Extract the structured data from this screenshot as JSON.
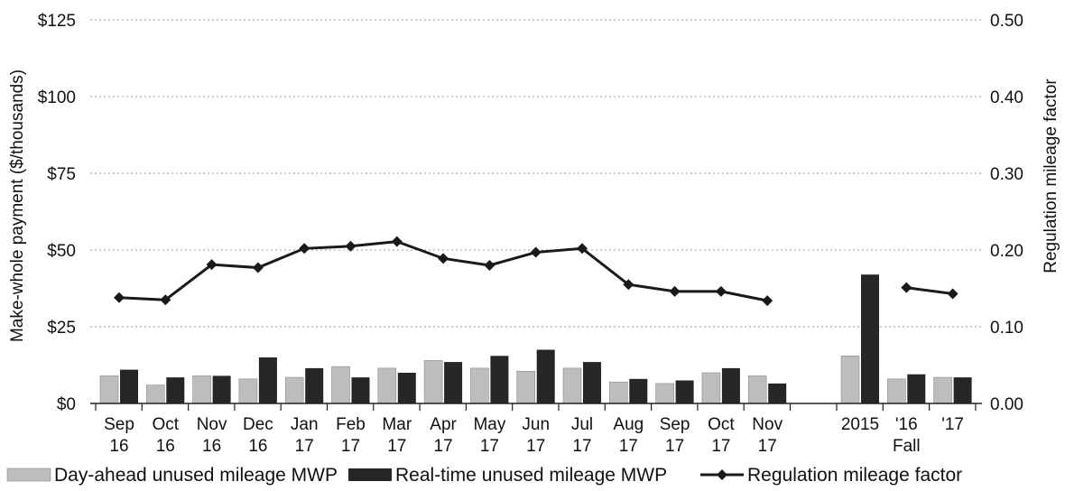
{
  "chart_data": {
    "type": "bar",
    "categories": [
      [
        "Sep",
        "16"
      ],
      [
        "Oct",
        "16"
      ],
      [
        "Nov",
        "16"
      ],
      [
        "Dec",
        "16"
      ],
      [
        "Jan",
        "17"
      ],
      [
        "Feb",
        "17"
      ],
      [
        "Mar",
        "17"
      ],
      [
        "Apr",
        "17"
      ],
      [
        "May",
        "17"
      ],
      [
        "Jun",
        "17"
      ],
      [
        "Jul",
        "17"
      ],
      [
        "Aug",
        "17"
      ],
      [
        "Sep",
        "17"
      ],
      [
        "Oct",
        "17"
      ],
      [
        "Nov",
        "17"
      ]
    ],
    "fall_categories": [
      "2015",
      "'16",
      "'17"
    ],
    "fall_group_label": "Fall",
    "series": [
      {
        "name": "Day-ahead unused mileage MWP",
        "kind": "bar",
        "axis": "left",
        "color": "#bdbdbd",
        "values": [
          9,
          6,
          9,
          8,
          8.5,
          12,
          11.5,
          14,
          11.5,
          10.5,
          11.5,
          7,
          6.5,
          10,
          9
        ],
        "fall_values": [
          15.5,
          8,
          8.5
        ]
      },
      {
        "name": "Real-time unused mileage MWP",
        "kind": "bar",
        "axis": "left",
        "color": "#262626",
        "values": [
          11,
          8.5,
          9,
          15,
          11.5,
          8.5,
          10,
          13.5,
          15.5,
          17.5,
          13.5,
          8,
          7.5,
          11.5,
          6.5
        ],
        "fall_values": [
          42,
          9.5,
          8.5
        ]
      },
      {
        "name": "Regulation mileage factor",
        "kind": "line",
        "axis": "right",
        "color": "#1a1a1a",
        "values": [
          0.138,
          0.135,
          0.181,
          0.177,
          0.202,
          0.205,
          0.211,
          0.189,
          0.18,
          0.197,
          0.202,
          0.155,
          0.146,
          0.146,
          0.134
        ],
        "fall_values": [
          null,
          0.151,
          0.143
        ]
      }
    ],
    "ylabel": "Make-whole payment ($/thousands)",
    "y2label": "Regulation mileage factor",
    "ylim": [
      0,
      125
    ],
    "y2lim": [
      0,
      0.5
    ],
    "yticks": [
      "$0",
      "$25",
      "$50",
      "$75",
      "$100",
      "$125"
    ],
    "y2ticks": [
      "0.00",
      "0.10",
      "0.20",
      "0.30",
      "0.40",
      "0.50"
    ],
    "grid": "dotted horizontal",
    "legend_position": "bottom"
  }
}
